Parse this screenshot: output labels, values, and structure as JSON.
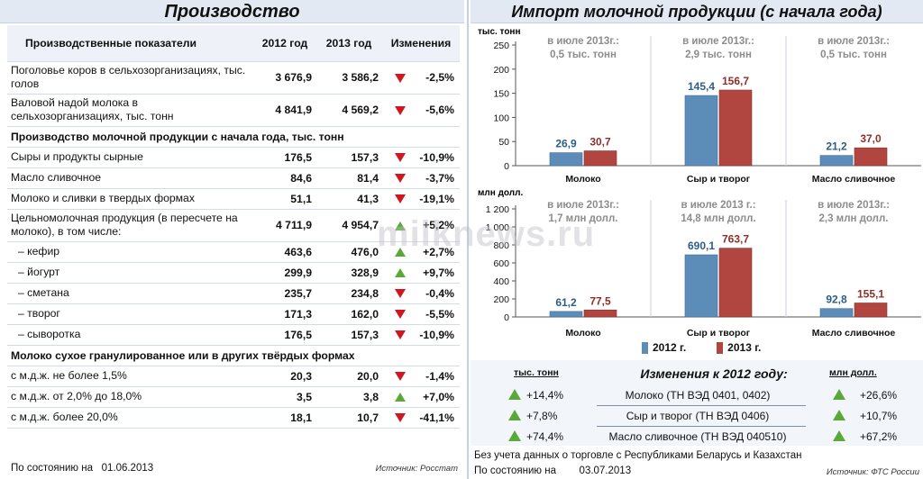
{
  "left": {
    "title": "Производство",
    "headers": [
      "Производственные показатели",
      "2012 год",
      "2013 год",
      "Изменения"
    ],
    "rows": [
      {
        "name": "Поголовье коров в сельхозорганизациях, тыс. голов",
        "v2012": "3 676,9",
        "v2013": "3 586,2",
        "change": "-2,5%",
        "dir": "down"
      },
      {
        "name": "Валовой надой молока в сельхозорганизациях, тыс. тонн",
        "v2012": "4 841,9",
        "v2013": "4 569,2",
        "change": "-5,6%",
        "dir": "down"
      },
      {
        "section": "Производство молочной продукции с начала года, тыс. тонн"
      },
      {
        "name": "Сыры и продукты сырные",
        "v2012": "176,5",
        "v2013": "157,3",
        "change": "-10,9%",
        "dir": "down"
      },
      {
        "name": "Масло сливочное",
        "v2012": "84,6",
        "v2013": "81,4",
        "change": "-3,7%",
        "dir": "down"
      },
      {
        "name": "Молоко и сливки в твердых формах",
        "v2012": "51,1",
        "v2013": "41,3",
        "change": "-19,1%",
        "dir": "down"
      },
      {
        "name": "Цельномолочная продукция (в пересчете на молоко), в том числе:",
        "v2012": "4 711,9",
        "v2013": "4 954,7",
        "change": "+5,2%",
        "dir": "up"
      },
      {
        "name": "– кефир",
        "v2012": "463,6",
        "v2013": "476,0",
        "change": "+2,7%",
        "dir": "up",
        "indent": true
      },
      {
        "name": "– йогурт",
        "v2012": "299,9",
        "v2013": "328,9",
        "change": "+9,7%",
        "dir": "up",
        "indent": true
      },
      {
        "name": "– сметана",
        "v2012": "235,7",
        "v2013": "234,8",
        "change": "-0,4%",
        "dir": "down",
        "indent": true
      },
      {
        "name": "– творог",
        "v2012": "171,3",
        "v2013": "162,0",
        "change": "-5,5%",
        "dir": "down",
        "indent": true
      },
      {
        "name": "– сыворотка",
        "v2012": "176,5",
        "v2013": "157,3",
        "change": "-10,9%",
        "dir": "down",
        "indent": true
      },
      {
        "section": "Молоко сухое гранулированное или в других твёрдых формах"
      },
      {
        "name": "с м.д.ж. не более 1,5%",
        "v2012": "20,3",
        "v2013": "20,0",
        "change": "-1,4%",
        "dir": "down"
      },
      {
        "name": "с м.д.ж. от 2,0% до 18,0%",
        "v2012": "3,5",
        "v2013": "3,8",
        "change": "+7,0%",
        "dir": "up"
      },
      {
        "name": "с м.д.ж. более 20,0%",
        "v2012": "18,1",
        "v2013": "10,7",
        "change": "-41,1%",
        "dir": "down"
      }
    ],
    "footer_label": "По состоянию на",
    "footer_date": "01.06.2013",
    "source": "Источник: Росстат"
  },
  "right": {
    "title": "Импорт молочной продукции (с начала года)",
    "legend": [
      "2012 г.",
      "2013 г."
    ],
    "changes": {
      "title": "Изменения к 2012 году:",
      "left_head": "тыс. тонн",
      "right_head": "млн долл.",
      "rows": [
        {
          "v1": "+14,4%",
          "name": "Молоко (ТН ВЭД 0401, 0402)",
          "v2": "+26,6%"
        },
        {
          "v1": "+7,8%",
          "name": "Сыр и творог (ТН ВЭД 0406)",
          "v2": "+10,7%"
        },
        {
          "v1": "+74,4%",
          "name": "Масло сливочное (ТН ВЭД 040510)",
          "v2": "+67,2%"
        }
      ]
    },
    "footer_note": "Без учета данных о торговле с Республиками Беларусь и Казахстан",
    "footer_label": "По состоянию на",
    "footer_date": "03.07.2013",
    "source": "Источник: ФТС России"
  },
  "watermark": "milknews.ru",
  "colors": {
    "s2012": "#5b8db8",
    "s2013": "#b0463f",
    "up": "#5aa837",
    "down": "#d0161e"
  },
  "chart_data": [
    {
      "type": "bar",
      "ylabel": "тыс. тонн",
      "ylim": [
        0,
        250
      ],
      "yticks": [
        0,
        50,
        100,
        150,
        200,
        250
      ],
      "categories": [
        "Молоко",
        "Сыр и творог",
        "Масло сливочное"
      ],
      "series": [
        {
          "name": "2012 г.",
          "values": [
            26.9,
            145.4,
            21.2
          ],
          "labels": [
            "26,9",
            "145,4",
            "21,2"
          ]
        },
        {
          "name": "2013 г.",
          "values": [
            30.7,
            156.7,
            37.0
          ],
          "labels": [
            "30,7",
            "156,7",
            "37,0"
          ]
        }
      ],
      "annotations": [
        [
          "в июле 2013г.:",
          "0,5 тыс. тонн"
        ],
        [
          "в июле 2013г.:",
          "2,9 тыс. тонн"
        ],
        [
          "в июле 2013г.:",
          "0,5 тыс. тонн"
        ]
      ],
      "tick_labels": [
        "0",
        "50",
        "100",
        "150",
        "200",
        "250"
      ]
    },
    {
      "type": "bar",
      "ylabel": "млн долл.",
      "ylim": [
        0,
        1200
      ],
      "yticks": [
        0,
        200,
        400,
        600,
        800,
        1000,
        1200
      ],
      "categories": [
        "Молоко",
        "Сыр и творог",
        "Масло сливочное"
      ],
      "series": [
        {
          "name": "2012 г.",
          "values": [
            61.2,
            690.1,
            92.8
          ],
          "labels": [
            "61,2",
            "690,1",
            "92,8"
          ]
        },
        {
          "name": "2013 г.",
          "values": [
            77.5,
            763.7,
            155.1
          ],
          "labels": [
            "77,5",
            "763,7",
            "155,1"
          ]
        }
      ],
      "annotations": [
        [
          "в июле 2013г.:",
          "1,7 млн долл."
        ],
        [
          "в июле 2013 г.:",
          "14,8 млн долл."
        ],
        [
          "в июле 2013г.:",
          "2,3 млн долл."
        ]
      ],
      "tick_labels": [
        "0",
        "200",
        "400",
        "600",
        "800",
        "1 000",
        "1 200"
      ]
    }
  ]
}
